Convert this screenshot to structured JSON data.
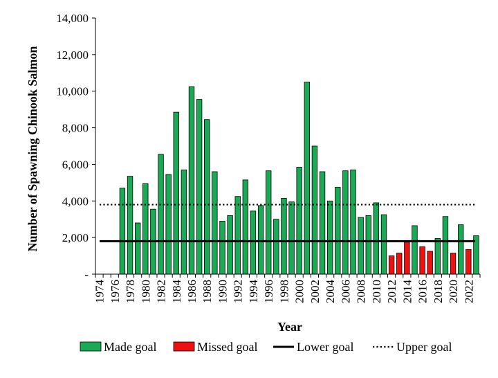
{
  "chart_data": {
    "type": "bar",
    "title": "",
    "xlabel": "Year",
    "ylabel": "Number of Spawning Chinook Salmon",
    "ylim": [
      0,
      14000
    ],
    "yticks": [
      {
        "value": 0,
        "label": "-"
      },
      {
        "value": 2000,
        "label": "2,000"
      },
      {
        "value": 4000,
        "label": "4,000"
      },
      {
        "value": 6000,
        "label": "6,000"
      },
      {
        "value": 8000,
        "label": "8,000"
      },
      {
        "value": 10000,
        "label": "10,000"
      },
      {
        "value": 12000,
        "label": "12,000"
      },
      {
        "value": 14000,
        "label": "14,000"
      }
    ],
    "x_tick_labels": [
      "1974",
      "1976",
      "1978",
      "1980",
      "1982",
      "1984",
      "1986",
      "1988",
      "1990",
      "1992",
      "1994",
      "1996",
      "1998",
      "2000",
      "2002",
      "2004",
      "2006",
      "2008",
      "2010",
      "2012",
      "2014",
      "2016",
      "2018",
      "2020",
      "2022"
    ],
    "years": [
      1974,
      1975,
      1976,
      1977,
      1978,
      1979,
      1980,
      1981,
      1982,
      1983,
      1984,
      1985,
      1986,
      1987,
      1988,
      1989,
      1990,
      1991,
      1992,
      1993,
      1994,
      1995,
      1996,
      1997,
      1998,
      1999,
      2000,
      2001,
      2002,
      2003,
      2004,
      2005,
      2006,
      2007,
      2008,
      2009,
      2010,
      2011,
      2012,
      2013,
      2014,
      2015,
      2016,
      2017,
      2018,
      2019,
      2020,
      2021,
      2022,
      2023
    ],
    "series": [
      {
        "name": "Made goal",
        "color": "#1aaa55",
        "values": [
          null,
          null,
          null,
          4700,
          5350,
          2800,
          4950,
          3550,
          6550,
          5450,
          8850,
          5700,
          10250,
          9550,
          8450,
          5600,
          2900,
          3200,
          4250,
          5150,
          3450,
          3750,
          5650,
          3000,
          4150,
          3950,
          5850,
          10500,
          7000,
          5600,
          4000,
          4750,
          5650,
          5700,
          3100,
          3200,
          3900,
          3250,
          null,
          null,
          null,
          2650,
          null,
          null,
          1950,
          3150,
          null,
          2700,
          null,
          2100
        ]
      },
      {
        "name": "Missed goal",
        "color": "#ee1111",
        "values": [
          null,
          null,
          null,
          null,
          null,
          null,
          null,
          null,
          null,
          null,
          null,
          null,
          null,
          null,
          null,
          null,
          null,
          null,
          null,
          null,
          null,
          null,
          null,
          null,
          null,
          null,
          null,
          null,
          null,
          null,
          null,
          null,
          null,
          null,
          null,
          null,
          null,
          null,
          1000,
          1150,
          1750,
          null,
          1500,
          1250,
          null,
          null,
          1150,
          null,
          1350,
          null
        ]
      }
    ],
    "lines": [
      {
        "name": "Lower goal",
        "value": 1800,
        "style": "solid",
        "color": "#000000"
      },
      {
        "name": "Upper goal",
        "value": 3800,
        "style": "dotted",
        "color": "#000000"
      }
    ],
    "legend": {
      "position": "bottom",
      "items": [
        "Made goal",
        "Missed goal",
        "Lower goal",
        "Upper goal"
      ]
    },
    "grid": false
  }
}
